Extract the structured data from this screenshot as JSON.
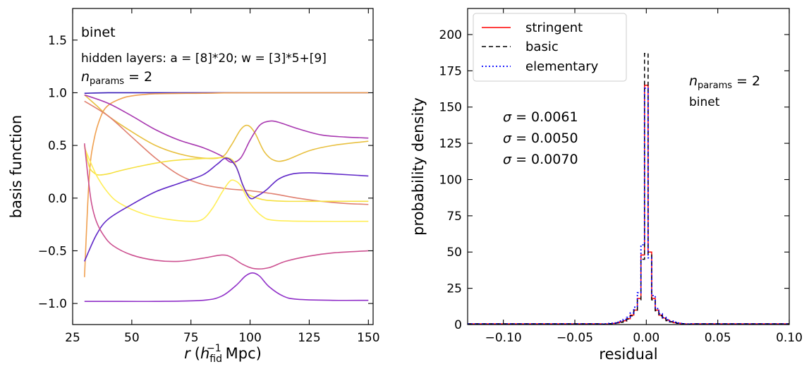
{
  "chart_data": [
    {
      "type": "line",
      "xlabel_main": "r",
      "xlabel_paren_open": "(",
      "xlabel_h": "h",
      "xlabel_sub": "fid",
      "xlabel_sup": "−1",
      "xlabel_units": "Mpc)",
      "ylabel": "basis function",
      "xlim": [
        25,
        152
      ],
      "ylim": [
        -1.2,
        1.8
      ],
      "xticks": [
        25,
        50,
        75,
        100,
        125,
        150
      ],
      "yticks": [
        -1.0,
        -0.5,
        0.0,
        0.5,
        1.0,
        1.5
      ],
      "xtick_labels": [
        "25",
        "50",
        "75",
        "100",
        "125",
        "150"
      ],
      "ytick_labels": [
        "−1.0",
        "−0.5",
        "0.0",
        "0.5",
        "1.0",
        "1.5"
      ],
      "annotations": {
        "emulator": "binet",
        "hidden_layers": "hidden layers: a = [8]*20; w = [3]*5+[9]",
        "nparams_n": "n",
        "nparams_sub": "params",
        "nparams_eq": " = 2"
      },
      "series": [
        {
          "color": "#3a1fb8",
          "points": [
            [
              30,
              0.995
            ],
            [
              40,
              1.0
            ],
            [
              60,
              1.0
            ],
            [
              100,
              1.0
            ],
            [
              150,
              1.0
            ]
          ]
        },
        {
          "color": "#f0a050",
          "points": [
            [
              30,
              -0.75
            ],
            [
              32,
              0.2
            ],
            [
              34,
              0.55
            ],
            [
              37,
              0.78
            ],
            [
              40,
              0.88
            ],
            [
              45,
              0.94
            ],
            [
              50,
              0.97
            ],
            [
              60,
              0.99
            ],
            [
              80,
              0.995
            ],
            [
              100,
              1.0
            ],
            [
              150,
              1.0
            ]
          ]
        },
        {
          "color": "#e8c040",
          "points": [
            [
              30,
              0.98
            ],
            [
              35,
              0.88
            ],
            [
              40,
              0.78
            ],
            [
              50,
              0.63
            ],
            [
              60,
              0.5
            ],
            [
              70,
              0.42
            ],
            [
              80,
              0.38
            ],
            [
              88,
              0.39
            ],
            [
              92,
              0.5
            ],
            [
              96,
              0.65
            ],
            [
              99,
              0.69
            ],
            [
              102,
              0.62
            ],
            [
              106,
              0.44
            ],
            [
              110,
              0.36
            ],
            [
              115,
              0.36
            ],
            [
              125,
              0.45
            ],
            [
              135,
              0.5
            ],
            [
              150,
              0.54
            ]
          ]
        },
        {
          "color": "#a838b0",
          "points": [
            [
              30,
              0.98
            ],
            [
              40,
              0.9
            ],
            [
              50,
              0.78
            ],
            [
              60,
              0.65
            ],
            [
              70,
              0.55
            ],
            [
              80,
              0.48
            ],
            [
              88,
              0.4
            ],
            [
              92,
              0.34
            ],
            [
              96,
              0.38
            ],
            [
              100,
              0.55
            ],
            [
              104,
              0.69
            ],
            [
              108,
              0.73
            ],
            [
              112,
              0.72
            ],
            [
              120,
              0.66
            ],
            [
              130,
              0.6
            ],
            [
              140,
              0.58
            ],
            [
              150,
              0.57
            ]
          ]
        },
        {
          "color": "#e08070",
          "points": [
            [
              30,
              0.92
            ],
            [
              40,
              0.78
            ],
            [
              50,
              0.58
            ],
            [
              60,
              0.38
            ],
            [
              70,
              0.22
            ],
            [
              80,
              0.13
            ],
            [
              90,
              0.09
            ],
            [
              100,
              0.07
            ],
            [
              110,
              0.04
            ],
            [
              120,
              0.0
            ],
            [
              130,
              -0.03
            ],
            [
              140,
              -0.05
            ],
            [
              150,
              -0.06
            ]
          ]
        },
        {
          "color": "#f5e040",
          "points": [
            [
              30,
              0.5
            ],
            [
              32,
              0.3
            ],
            [
              34,
              0.24
            ],
            [
              36,
              0.22
            ],
            [
              40,
              0.23
            ],
            [
              45,
              0.26
            ],
            [
              55,
              0.31
            ],
            [
              65,
              0.35
            ],
            [
              75,
              0.37
            ],
            [
              85,
              0.38
            ],
            [
              90,
              0.385
            ],
            [
              93,
              0.35
            ],
            [
              95,
              0.25
            ],
            [
              97,
              0.12
            ],
            [
              99,
              0.04
            ],
            [
              103,
              0.0
            ],
            [
              107,
              -0.02
            ],
            [
              115,
              -0.03
            ],
            [
              130,
              -0.03
            ],
            [
              150,
              -0.03
            ]
          ]
        },
        {
          "color": "#ffee58",
          "points": [
            [
              30,
              0.48
            ],
            [
              35,
              0.22
            ],
            [
              40,
              0.05
            ],
            [
              45,
              -0.05
            ],
            [
              55,
              -0.15
            ],
            [
              65,
              -0.2
            ],
            [
              75,
              -0.22
            ],
            [
              80,
              -0.2
            ],
            [
              84,
              -0.1
            ],
            [
              88,
              0.05
            ],
            [
              91,
              0.15
            ],
            [
              93,
              0.17
            ],
            [
              96,
              0.12
            ],
            [
              100,
              -0.05
            ],
            [
              105,
              -0.17
            ],
            [
              110,
              -0.21
            ],
            [
              125,
              -0.22
            ],
            [
              150,
              -0.22
            ]
          ]
        },
        {
          "color": "#6028c8",
          "points": [
            [
              30,
              -0.6
            ],
            [
              35,
              -0.35
            ],
            [
              40,
              -0.2
            ],
            [
              50,
              -0.06
            ],
            [
              60,
              0.06
            ],
            [
              70,
              0.14
            ],
            [
              80,
              0.22
            ],
            [
              86,
              0.32
            ],
            [
              90,
              0.38
            ],
            [
              94,
              0.3
            ],
            [
              97,
              0.12
            ],
            [
              100,
              0.0
            ],
            [
              103,
              0.02
            ],
            [
              107,
              0.08
            ],
            [
              112,
              0.18
            ],
            [
              118,
              0.23
            ],
            [
              125,
              0.24
            ],
            [
              135,
              0.23
            ],
            [
              150,
              0.21
            ]
          ]
        },
        {
          "color": "#cc5090",
          "points": [
            [
              30,
              0.52
            ],
            [
              31.5,
              0.2
            ],
            [
              33,
              -0.05
            ],
            [
              35,
              -0.22
            ],
            [
              38,
              -0.35
            ],
            [
              42,
              -0.45
            ],
            [
              50,
              -0.54
            ],
            [
              60,
              -0.59
            ],
            [
              70,
              -0.6
            ],
            [
              80,
              -0.57
            ],
            [
              88,
              -0.54
            ],
            [
              92,
              -0.56
            ],
            [
              97,
              -0.63
            ],
            [
              102,
              -0.67
            ],
            [
              108,
              -0.66
            ],
            [
              115,
              -0.6
            ],
            [
              125,
              -0.55
            ],
            [
              135,
              -0.52
            ],
            [
              150,
              -0.5
            ]
          ]
        },
        {
          "color": "#9030c8",
          "points": [
            [
              30,
              -0.98
            ],
            [
              40,
              -0.98
            ],
            [
              60,
              -0.98
            ],
            [
              80,
              -0.97
            ],
            [
              88,
              -0.93
            ],
            [
              94,
              -0.83
            ],
            [
              98,
              -0.74
            ],
            [
              101,
              -0.71
            ],
            [
              104,
              -0.74
            ],
            [
              108,
              -0.84
            ],
            [
              114,
              -0.93
            ],
            [
              120,
              -0.96
            ],
            [
              135,
              -0.97
            ],
            [
              150,
              -0.97
            ]
          ]
        }
      ]
    },
    {
      "type": "histogram",
      "xlabel": "residual",
      "ylabel": "probability density",
      "xlim": [
        -0.125,
        0.1
      ],
      "ylim": [
        0,
        218
      ],
      "xticks": [
        -0.1,
        -0.05,
        0.0,
        0.05,
        0.1
      ],
      "yticks": [
        0,
        25,
        50,
        75,
        100,
        125,
        150,
        175,
        200
      ],
      "xtick_labels": [
        "−0.10",
        "−0.05",
        "0.00",
        "0.05",
        "0.10"
      ],
      "ytick_labels": [
        "0",
        "25",
        "50",
        "75",
        "100",
        "125",
        "150",
        "175",
        "200"
      ],
      "legend": {
        "placement": "top-left",
        "entries": [
          {
            "label": "stringent",
            "color": "#ff0000",
            "style": "solid"
          },
          {
            "label": "basic",
            "color": "#000000",
            "style": "dashed"
          },
          {
            "label": "elementary",
            "color": "#0000ff",
            "style": "dotted"
          }
        ]
      },
      "annotations": {
        "nparams_n": "n",
        "nparams_sub": "params",
        "nparams_eq": " = 2",
        "emulator": "binet",
        "sigma_symbol": "σ",
        "sigmas": [
          {
            "text": " = 0.0061",
            "color": "#ff0000"
          },
          {
            "text": " = 0.0050",
            "color": "#222222"
          },
          {
            "text": " = 0.0070",
            "color": "#0000ff"
          }
        ]
      },
      "bin_width": 0.0025,
      "series": [
        {
          "name": "stringent",
          "color": "#ff0000",
          "dash": "none",
          "bins": [
            [
              -0.03,
              0.3
            ],
            [
              -0.0275,
              0.4
            ],
            [
              -0.025,
              0.6
            ],
            [
              -0.0225,
              0.8
            ],
            [
              -0.02,
              1.2
            ],
            [
              -0.0175,
              1.8
            ],
            [
              -0.015,
              2.6
            ],
            [
              -0.0125,
              4
            ],
            [
              -0.01,
              6.5
            ],
            [
              -0.0075,
              10
            ],
            [
              -0.005,
              18
            ],
            [
              -0.0025,
              48
            ],
            [
              0.0,
              165
            ],
            [
              0.0025,
              50
            ],
            [
              0.005,
              18
            ],
            [
              0.0075,
              10
            ],
            [
              0.01,
              6.5
            ],
            [
              0.0125,
              4.5
            ],
            [
              0.015,
              3
            ],
            [
              0.0175,
              2
            ],
            [
              0.02,
              1.3
            ],
            [
              0.0225,
              0.9
            ],
            [
              0.025,
              0.6
            ],
            [
              0.0275,
              0.4
            ],
            [
              0.03,
              0.3
            ]
          ]
        },
        {
          "name": "basic",
          "color": "#000000",
          "dash": "6,4",
          "bins": [
            [
              -0.03,
              0.3
            ],
            [
              -0.0275,
              0.4
            ],
            [
              -0.025,
              0.6
            ],
            [
              -0.0225,
              0.8
            ],
            [
              -0.02,
              1.1
            ],
            [
              -0.0175,
              1.6
            ],
            [
              -0.015,
              2.4
            ],
            [
              -0.0125,
              3.8
            ],
            [
              -0.01,
              6
            ],
            [
              -0.0075,
              9.5
            ],
            [
              -0.005,
              17
            ],
            [
              -0.0025,
              45
            ],
            [
              0.0,
              187
            ],
            [
              0.0025,
              48
            ],
            [
              0.005,
              17
            ],
            [
              0.0075,
              9.5
            ],
            [
              0.01,
              6
            ],
            [
              0.0125,
              4
            ],
            [
              0.015,
              2.7
            ],
            [
              0.0175,
              1.8
            ],
            [
              0.02,
              1.2
            ],
            [
              0.0225,
              0.8
            ],
            [
              0.025,
              0.6
            ],
            [
              0.0275,
              0.4
            ],
            [
              0.03,
              0.3
            ]
          ]
        },
        {
          "name": "elementary",
          "color": "#0000ff",
          "dash": "2,3",
          "bins": [
            [
              -0.03,
              0.4
            ],
            [
              -0.0275,
              0.5
            ],
            [
              -0.025,
              0.8
            ],
            [
              -0.0225,
              1.1
            ],
            [
              -0.02,
              1.6
            ],
            [
              -0.0175,
              2.4
            ],
            [
              -0.015,
              3.5
            ],
            [
              -0.0125,
              5
            ],
            [
              -0.01,
              8
            ],
            [
              -0.0075,
              12
            ],
            [
              -0.005,
              22
            ],
            [
              -0.0025,
              55
            ],
            [
              0.0,
              163
            ],
            [
              0.0025,
              46
            ],
            [
              0.005,
              20
            ],
            [
              0.0075,
              11
            ],
            [
              0.01,
              7.5
            ],
            [
              0.0125,
              5
            ],
            [
              0.015,
              3.4
            ],
            [
              0.0175,
              2.4
            ],
            [
              0.02,
              1.6
            ],
            [
              0.0225,
              1.1
            ],
            [
              0.025,
              0.8
            ],
            [
              0.0275,
              0.5
            ],
            [
              0.03,
              0.4
            ]
          ]
        }
      ]
    }
  ]
}
